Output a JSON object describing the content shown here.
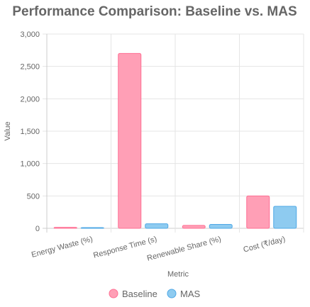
{
  "chart_data": {
    "type": "bar",
    "title": "Performance Comparison: Baseline vs. MAS",
    "xlabel": "Metric",
    "ylabel": "Value",
    "categories": [
      "Energy Waste (%)",
      "Response Time (s)",
      "Renewable Share (%)",
      "Cost (₹/day)"
    ],
    "series": [
      {
        "name": "Baseline",
        "values": [
          15,
          2700,
          45,
          500
        ],
        "color": "#ff9fb6",
        "border": "#ff6f93"
      },
      {
        "name": "MAS",
        "values": [
          5,
          70,
          60,
          340
        ],
        "color": "#8ecbf0",
        "border": "#4fa8e6"
      }
    ],
    "ylim": [
      0,
      3000
    ],
    "yticks": [
      "0",
      "500",
      "1,000",
      "1,500",
      "2,000",
      "2,500",
      "3,000"
    ],
    "yticks_values": [
      0,
      500,
      1000,
      1500,
      2000,
      2500,
      3000
    ],
    "grid": true,
    "legend_position": "bottom"
  }
}
